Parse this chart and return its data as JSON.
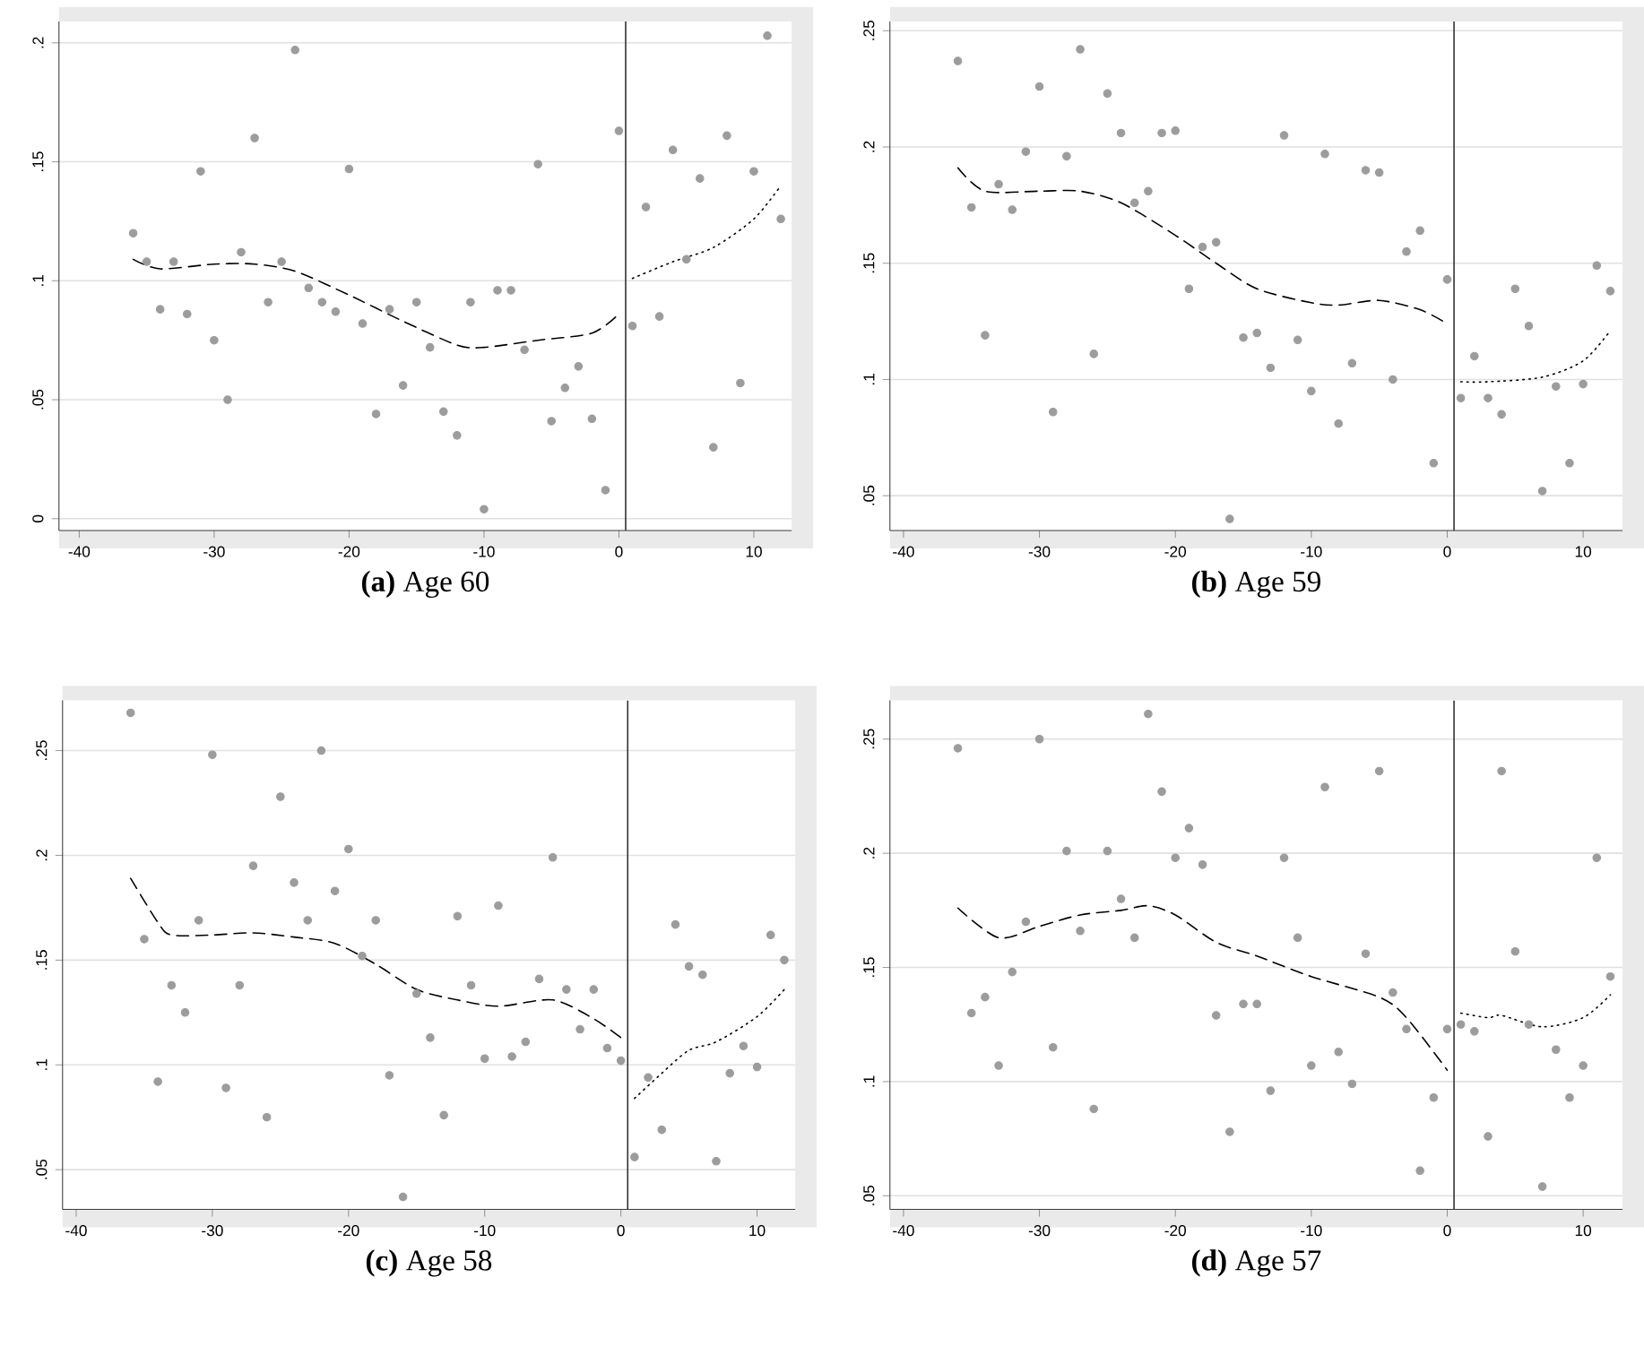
{
  "chart_data": [
    {
      "type": "scatter",
      "title": "**(a)** Age 60",
      "marker": "circle",
      "grid": "y",
      "xlim": [
        -41.5,
        12.8
      ],
      "ylim": [
        -0.005,
        0.209
      ],
      "xticks": [
        -40,
        -30,
        -20,
        -10,
        0,
        10
      ],
      "yticks": [
        {
          "value": 0,
          "label": "0"
        },
        {
          "value": 0.05,
          "label": ".05"
        },
        {
          "value": 0.1,
          "label": ".1"
        },
        {
          "value": 0.15,
          "label": ".15"
        },
        {
          "value": 0.2,
          "label": ".2"
        }
      ],
      "ref_lines": [
        {
          "axis": "x",
          "value": 0.5,
          "color": "#333333"
        }
      ],
      "x": [
        -36,
        -35,
        -34,
        -33,
        -32,
        -31,
        -30,
        -29,
        -28,
        -27,
        -26,
        -25,
        -24,
        -23,
        -22,
        -21,
        -20,
        -19,
        -18,
        -17,
        -16,
        -15,
        -14,
        -13,
        -12,
        -11,
        -10,
        -9,
        -8,
        -7,
        -6,
        -5,
        -4,
        -3,
        -2,
        -1,
        0,
        1,
        2,
        3,
        4,
        5,
        6,
        7,
        8,
        9,
        10,
        11,
        12
      ],
      "series": [
        {
          "color": "#9c9c9c",
          "values": [
            0.12,
            0.108,
            0.088,
            0.108,
            0.086,
            0.146,
            0.075,
            0.05,
            0.112,
            0.16,
            0.091,
            0.108,
            0.197,
            0.097,
            0.091,
            0.087,
            0.147,
            0.082,
            0.044,
            0.088,
            0.056,
            0.091,
            0.072,
            0.045,
            0.035,
            0.091,
            0.004,
            0.096,
            0.096,
            0.071,
            0.149,
            0.041,
            0.055,
            0.064,
            0.042,
            0.012,
            0.163,
            0.081,
            0.131,
            0.085,
            0.155,
            0.109,
            0.143,
            0.03,
            0.161,
            0.057,
            0.146,
            0.203,
            0.126
          ]
        },
        {
          "type": "line",
          "marker": "none",
          "line_style": "dashed",
          "color": "#000000",
          "x": [
            -36,
            -34,
            -30,
            -27,
            -24,
            -20,
            -16,
            -12,
            -10,
            -6,
            -2,
            0
          ],
          "values": [
            0.109,
            0.105,
            0.107,
            0.107,
            0.104,
            0.094,
            0.083,
            0.073,
            0.072,
            0.075,
            0.078,
            0.086
          ]
        },
        {
          "type": "line",
          "marker": "none",
          "line_style": "dotted",
          "color": "#000000",
          "x": [
            1,
            4,
            7,
            10,
            12
          ],
          "values": [
            0.101,
            0.108,
            0.114,
            0.126,
            0.14
          ]
        }
      ]
    },
    {
      "type": "scatter",
      "title": "**(b)** Age 59",
      "marker": "circle",
      "grid": "y",
      "xlim": [
        -41,
        12.9
      ],
      "ylim": [
        0.035,
        0.254
      ],
      "xticks": [
        -40,
        -30,
        -20,
        -10,
        0,
        10
      ],
      "yticks": [
        {
          "value": 0.05,
          "label": ".05"
        },
        {
          "value": 0.1,
          "label": ".1"
        },
        {
          "value": 0.15,
          "label": ".15"
        },
        {
          "value": 0.2,
          "label": ".2"
        },
        {
          "value": 0.25,
          "label": ".25"
        }
      ],
      "ref_lines": [
        {
          "axis": "x",
          "value": 0.5,
          "color": "#333333"
        }
      ],
      "x": [
        -36,
        -35,
        -34,
        -33,
        -32,
        -31,
        -30,
        -29,
        -28,
        -27,
        -26,
        -25,
        -24,
        -23,
        -22,
        -21,
        -20,
        -19,
        -18,
        -17,
        -16,
        -15,
        -14,
        -13,
        -12,
        -11,
        -10,
        -9,
        -8,
        -7,
        -6,
        -5,
        -4,
        -3,
        -2,
        -1,
        0,
        1,
        2,
        3,
        4,
        5,
        6,
        7,
        8,
        9,
        10,
        11,
        12
      ],
      "series": [
        {
          "color": "#9c9c9c",
          "values": [
            0.237,
            0.174,
            0.119,
            0.184,
            0.173,
            0.198,
            0.226,
            0.086,
            0.196,
            0.242,
            0.111,
            0.223,
            0.206,
            0.176,
            0.181,
            0.206,
            0.207,
            0.139,
            0.157,
            0.159,
            0.04,
            0.118,
            0.12,
            0.105,
            0.205,
            0.117,
            0.095,
            0.197,
            0.081,
            0.107,
            0.19,
            0.189,
            0.1,
            0.155,
            0.164,
            0.064,
            0.143,
            0.092,
            0.11,
            0.092,
            0.085,
            0.139,
            0.123,
            0.052,
            0.097,
            0.064,
            0.098,
            0.149,
            0.138
          ]
        },
        {
          "type": "line",
          "marker": "none",
          "line_style": "dashed",
          "color": "#000000",
          "x": [
            -36,
            -34,
            -30,
            -27,
            -24,
            -20,
            -17,
            -14,
            -10,
            -8,
            -5,
            -2,
            0
          ],
          "values": [
            0.191,
            0.181,
            0.181,
            0.181,
            0.176,
            0.162,
            0.15,
            0.139,
            0.133,
            0.132,
            0.134,
            0.13,
            0.124
          ]
        },
        {
          "type": "line",
          "marker": "none",
          "line_style": "dotted",
          "color": "#000000",
          "x": [
            1,
            3,
            7,
            10,
            12
          ],
          "values": [
            0.099,
            0.099,
            0.101,
            0.108,
            0.121
          ]
        }
      ]
    },
    {
      "type": "scatter",
      "title": "**(c)** Age 58",
      "marker": "circle",
      "grid": "y",
      "xlim": [
        -41,
        12.8
      ],
      "ylim": [
        0.031,
        0.274
      ],
      "xticks": [
        -40,
        -30,
        -20,
        -10,
        0,
        10
      ],
      "yticks": [
        {
          "value": 0.05,
          "label": ".05"
        },
        {
          "value": 0.1,
          "label": ".1"
        },
        {
          "value": 0.15,
          "label": ".15"
        },
        {
          "value": 0.2,
          "label": ".2"
        },
        {
          "value": 0.25,
          "label": ".25"
        }
      ],
      "ref_lines": [
        {
          "axis": "x",
          "value": 0.5,
          "color": "#333333"
        }
      ],
      "x": [
        -36,
        -35,
        -34,
        -33,
        -32,
        -31,
        -30,
        -29,
        -28,
        -27,
        -26,
        -25,
        -24,
        -23,
        -22,
        -21,
        -20,
        -19,
        -18,
        -17,
        -16,
        -15,
        -14,
        -13,
        -12,
        -11,
        -10,
        -9,
        -8,
        -7,
        -6,
        -5,
        -4,
        -3,
        -2,
        -1,
        0,
        1,
        2,
        3,
        4,
        5,
        6,
        7,
        8,
        9,
        10,
        11,
        12
      ],
      "series": [
        {
          "color": "#9c9c9c",
          "values": [
            0.268,
            0.16,
            0.092,
            0.138,
            0.125,
            0.169,
            0.248,
            0.089,
            0.138,
            0.195,
            0.075,
            0.228,
            0.187,
            0.169,
            0.25,
            0.183,
            0.203,
            0.152,
            0.169,
            0.095,
            0.037,
            0.134,
            0.113,
            0.076,
            0.171,
            0.138,
            0.103,
            0.176,
            0.104,
            0.111,
            0.141,
            0.199,
            0.136,
            0.117,
            0.136,
            0.108,
            0.102,
            0.056,
            0.094,
            0.069,
            0.167,
            0.147,
            0.143,
            0.054,
            0.096,
            0.109,
            0.099,
            0.162,
            0.15
          ]
        },
        {
          "type": "line",
          "marker": "none",
          "line_style": "dashed",
          "color": "#000000",
          "x": [
            -36,
            -34,
            -33,
            -30,
            -27,
            -24,
            -21,
            -18,
            -15,
            -12,
            -9,
            -5,
            -2,
            0
          ],
          "values": [
            0.189,
            0.168,
            0.162,
            0.162,
            0.163,
            0.161,
            0.158,
            0.148,
            0.136,
            0.131,
            0.128,
            0.131,
            0.122,
            0.113
          ]
        },
        {
          "type": "line",
          "marker": "none",
          "line_style": "dotted",
          "color": "#000000",
          "x": [
            1,
            3,
            5,
            7,
            10,
            12
          ],
          "values": [
            0.084,
            0.096,
            0.107,
            0.111,
            0.123,
            0.136
          ]
        }
      ]
    },
    {
      "type": "scatter",
      "title": "**(d)** Age 57",
      "marker": "circle",
      "grid": "y",
      "xlim": [
        -41,
        12.9
      ],
      "ylim": [
        0.044,
        0.267
      ],
      "xticks": [
        -40,
        -30,
        -20,
        -10,
        0,
        10
      ],
      "yticks": [
        {
          "value": 0.05,
          "label": ".05"
        },
        {
          "value": 0.1,
          "label": ".1"
        },
        {
          "value": 0.15,
          "label": ".15"
        },
        {
          "value": 0.2,
          "label": ".2"
        },
        {
          "value": 0.25,
          "label": ".25"
        }
      ],
      "ref_lines": [
        {
          "axis": "x",
          "value": 0.5,
          "color": "#333333"
        }
      ],
      "x": [
        -36,
        -35,
        -34,
        -33,
        -32,
        -31,
        -30,
        -29,
        -28,
        -27,
        -26,
        -25,
        -24,
        -23,
        -22,
        -21,
        -20,
        -19,
        -18,
        -17,
        -16,
        -15,
        -14,
        -13,
        -12,
        -11,
        -10,
        -9,
        -8,
        -7,
        -6,
        -5,
        -4,
        -3,
        -2,
        -1,
        0,
        1,
        2,
        3,
        4,
        5,
        6,
        7,
        8,
        9,
        10,
        11,
        12
      ],
      "series": [
        {
          "color": "#9c9c9c",
          "values": [
            0.246,
            0.13,
            0.137,
            0.107,
            0.148,
            0.17,
            0.25,
            0.115,
            0.201,
            0.166,
            0.088,
            0.201,
            0.18,
            0.163,
            0.261,
            0.227,
            0.198,
            0.211,
            0.195,
            0.129,
            0.078,
            0.134,
            0.134,
            0.096,
            0.198,
            0.163,
            0.107,
            0.229,
            0.113,
            0.099,
            0.156,
            0.236,
            0.139,
            0.123,
            0.061,
            0.093,
            0.123,
            0.125,
            0.122,
            0.076,
            0.236,
            0.157,
            0.125,
            0.054,
            0.114,
            0.093,
            0.107,
            0.198,
            0.146
          ]
        },
        {
          "type": "line",
          "marker": "none",
          "line_style": "dashed",
          "color": "#000000",
          "x": [
            -36,
            -33,
            -30,
            -27,
            -24,
            -22,
            -20,
            -17,
            -14,
            -10,
            -5,
            -3,
            0
          ],
          "values": [
            0.176,
            0.163,
            0.168,
            0.173,
            0.175,
            0.177,
            0.173,
            0.161,
            0.155,
            0.146,
            0.137,
            0.128,
            0.105
          ]
        },
        {
          "type": "line",
          "marker": "none",
          "line_style": "dotted",
          "color": "#000000",
          "x": [
            1,
            3,
            4,
            7,
            10,
            12
          ],
          "values": [
            0.13,
            0.128,
            0.129,
            0.124,
            0.128,
            0.138
          ]
        }
      ]
    }
  ]
}
